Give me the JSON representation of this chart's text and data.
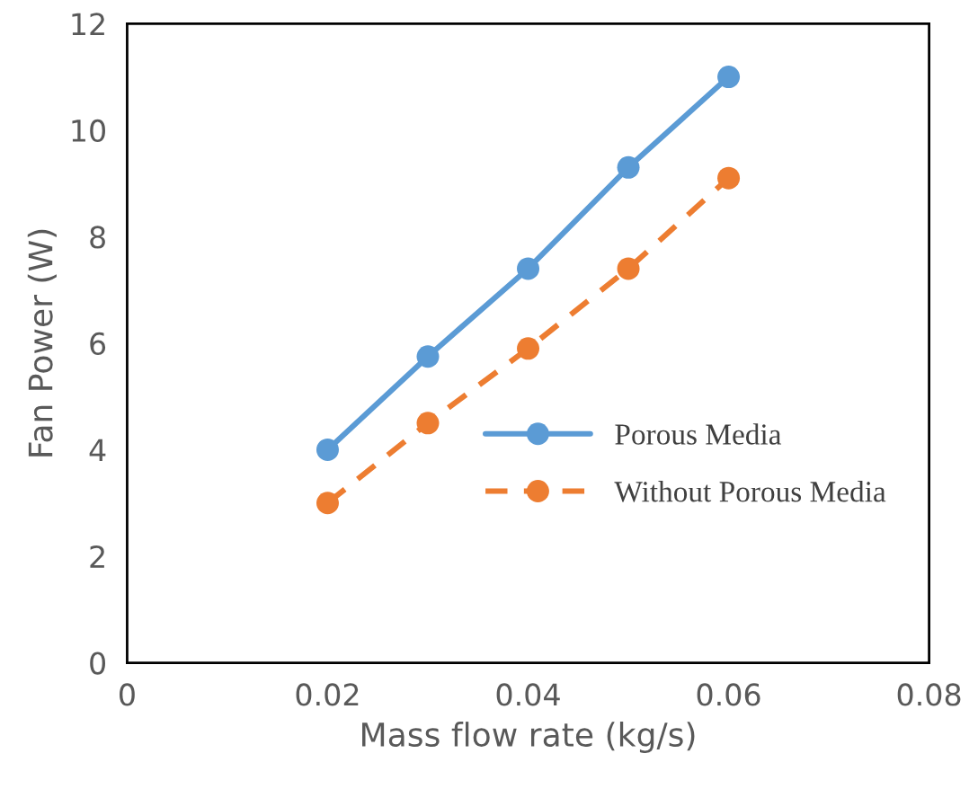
{
  "chart_data": {
    "type": "line",
    "xlabel": "Mass flow rate (kg/s)",
    "ylabel": "Fan Power (W)",
    "x": [
      0.02,
      0.03,
      0.04,
      0.05,
      0.06
    ],
    "series": [
      {
        "name": "Porous Media",
        "color": "#5b9bd5",
        "values": [
          4.0,
          5.75,
          7.4,
          9.3,
          11.0
        ],
        "line_style": "solid"
      },
      {
        "name": "Without Porous Media",
        "color": "#ed7d31",
        "values": [
          3.0,
          4.5,
          5.9,
          7.4,
          9.1
        ],
        "line_style": "dashed"
      }
    ],
    "xlim": [
      0,
      0.08
    ],
    "xticks": [
      0,
      0.02,
      0.04,
      0.06,
      0.08
    ],
    "ylim": [
      0,
      12
    ],
    "yticks": [
      0,
      2,
      4,
      6,
      8,
      10,
      12
    ],
    "marker": "circle",
    "grid": false,
    "legend": "bottom right"
  }
}
